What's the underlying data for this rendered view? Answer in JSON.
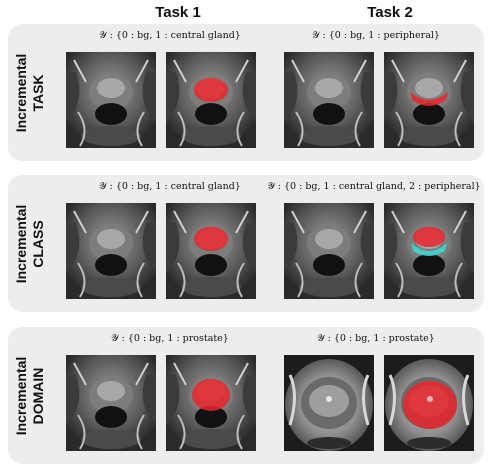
{
  "columns": [
    "Task 1",
    "Task 2"
  ],
  "rows": [
    {
      "label_top": "Incremental",
      "label_bottom": "TASK",
      "task1_formula": "𝒴 : {0 : bg, 1 : central gland}",
      "task2_formula": "𝒴 : {0 : bg, 1 : peripheral}",
      "task1_overlay": "central-gland",
      "task2_overlay": "peripheral"
    },
    {
      "label_top": "Incremental",
      "label_bottom": "CLASS",
      "task1_formula": "𝒴 : {0 : bg, 1 : central gland}",
      "task2_formula": "𝒴 : {0 : bg, 1 : central gland, 2 : peripheral}",
      "task1_overlay": "central-gland",
      "task2_overlay": "central-gland+peripheral"
    },
    {
      "label_top": "Incremental",
      "label_bottom": "DOMAIN",
      "task1_formula": "𝒴 : {0 : bg, 1 : prostate}",
      "task2_formula": "𝒴 : {0 : bg, 1 : prostate}",
      "task1_overlay": "prostate",
      "task2_overlay": "prostate-large"
    }
  ],
  "colors": {
    "panel": "#ededed",
    "mask_red": "#e8262b",
    "mask_cyan": "#3fd6d0"
  }
}
